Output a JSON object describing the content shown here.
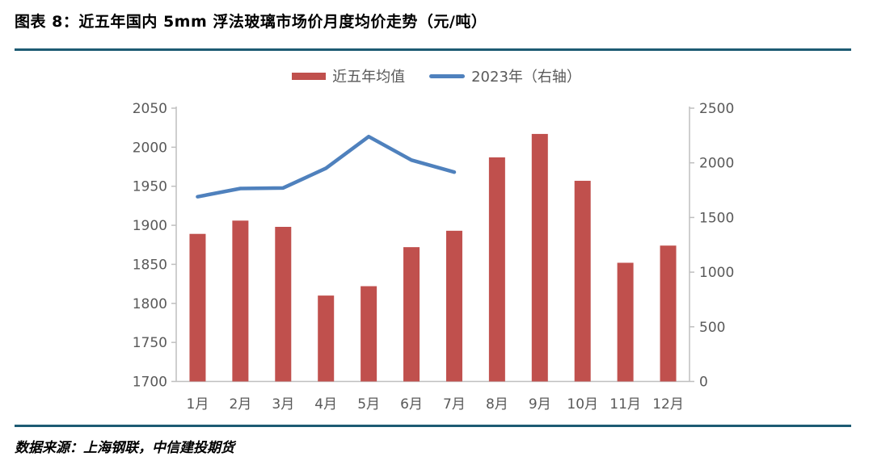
{
  "header": {
    "title": "图表 8：近五年国内 5mm 浮法玻璃市场价月度均价走势（元/吨）"
  },
  "footer": {
    "source": "数据来源：上海钢联，中信建投期货"
  },
  "legend": [
    {
      "label": "近五年均值",
      "type": "bar",
      "color": "#c0504d"
    },
    {
      "label": "2023年（右轴）",
      "type": "line",
      "color": "#4f81bd"
    }
  ],
  "colors": {
    "bar": "#c0504d",
    "line": "#4f81bd",
    "divider": "#1d5b73",
    "axis_line": "#bfbfbf",
    "axis_text": "#595959"
  },
  "chart_data": {
    "type": "bar+line",
    "title": "近五年国内 5mm 浮法玻璃市场价月度均价走势（元/吨）",
    "legend_position": "top-center",
    "grid": false,
    "categories": [
      "1月",
      "2月",
      "3月",
      "4月",
      "5月",
      "6月",
      "7月",
      "8月",
      "9月",
      "10月",
      "11月",
      "12月"
    ],
    "series": [
      {
        "name": "近五年均值",
        "type": "bar",
        "axis": "left",
        "color": "#c0504d",
        "values": [
          1889,
          1906,
          1898,
          1810,
          1822,
          1872,
          1893,
          1987,
          2017,
          1957,
          1852,
          1874
        ]
      },
      {
        "name": "2023年（右轴）",
        "type": "line",
        "axis": "right",
        "color": "#4f81bd",
        "values": [
          1690,
          1765,
          1770,
          1950,
          2240,
          2025,
          1915,
          null,
          null,
          null,
          null,
          null
        ]
      }
    ],
    "left_axis": {
      "min": 1700,
      "max": 2050,
      "step": 50,
      "ticks": [
        1700,
        1750,
        1800,
        1850,
        1900,
        1950,
        2000,
        2050
      ]
    },
    "right_axis": {
      "min": 0,
      "max": 2500,
      "step": 500,
      "ticks": [
        0,
        500,
        1000,
        1500,
        2000,
        2500
      ]
    }
  }
}
